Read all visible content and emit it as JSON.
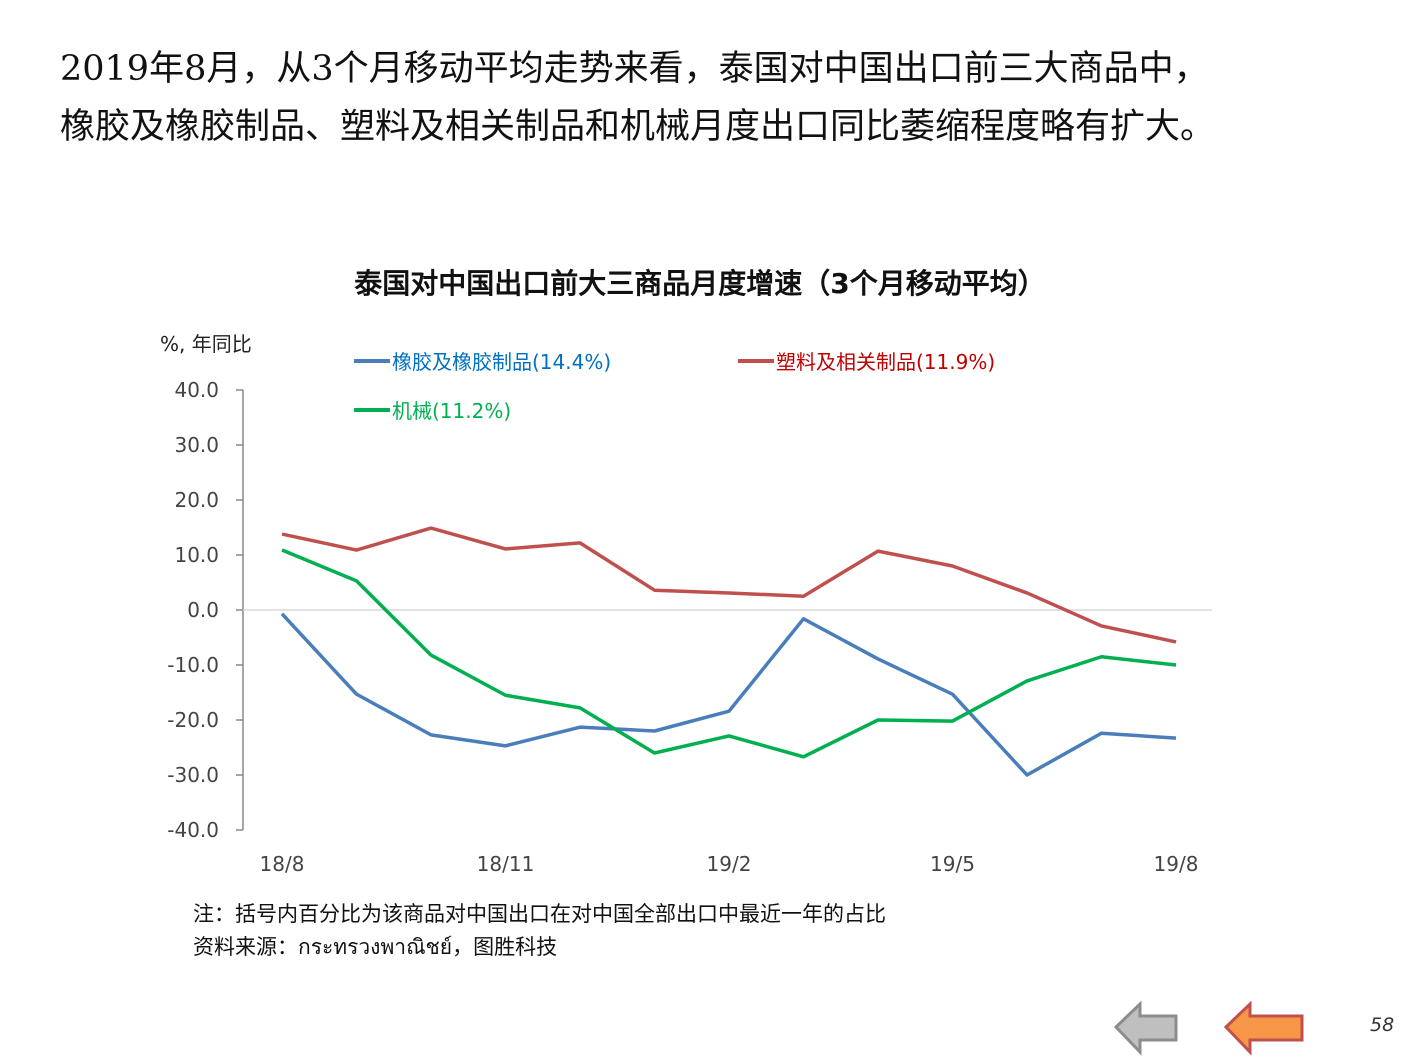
{
  "headline": {
    "line1": "2019年8月，从3个月移动平均走势来看，泰国对中国出口前三大商品中，",
    "line2": "橡胶及橡胶制品、塑料及相关制品和机械月度出口同比萎缩程度略有扩大。"
  },
  "chart_data": {
    "type": "line",
    "title": "泰国对中国出口前大三商品月度增速（3个月移动平均）",
    "ylabel": "%, 年同比",
    "xlabel": "",
    "ylim": [
      -40,
      40
    ],
    "yticks": [
      "40.0",
      "30.0",
      "20.0",
      "10.0",
      "0.0",
      "-10.0",
      "-20.0",
      "-30.0",
      "-40.0"
    ],
    "ytick_values": [
      40,
      30,
      20,
      10,
      0,
      -10,
      -20,
      -30,
      -40
    ],
    "x": [
      "18/8",
      "18/9",
      "18/10",
      "18/11",
      "18/12",
      "19/1",
      "19/2",
      "19/3",
      "19/4",
      "19/5",
      "19/6",
      "19/7",
      "19/8"
    ],
    "xtick_labels": [
      "18/8",
      "18/11",
      "19/2",
      "19/5",
      "19/8"
    ],
    "xtick_index": [
      0,
      3,
      6,
      9,
      12
    ],
    "legend_placement": "top",
    "series": [
      {
        "name": "橡胶及橡胶制品(14.4%)",
        "color": "#4a7ebb",
        "values": [
          -0.7,
          -15.3,
          -22.7,
          -24.7,
          -21.3,
          -22.0,
          -18.4,
          -1.6,
          -8.9,
          -15.3,
          -30.0,
          -22.4,
          -23.3
        ]
      },
      {
        "name": "塑料及相关制品(11.9%)",
        "color": "#c0504d",
        "values": [
          13.8,
          10.9,
          14.9,
          11.1,
          12.2,
          3.6,
          3.1,
          2.5,
          10.7,
          8.0,
          3.1,
          -2.9,
          -5.8
        ]
      },
      {
        "name": "机械(11.2%)",
        "color": "#00b050",
        "values": [
          10.9,
          5.3,
          -8.2,
          -15.5,
          -17.8,
          -26.0,
          -22.9,
          -26.7,
          -20.0,
          -20.2,
          -12.9,
          -8.5,
          -10.0
        ]
      }
    ]
  },
  "legend_text_colors": [
    "#0070c0",
    "#c00000",
    "#00b050"
  ],
  "notes": {
    "note": "注：括号内百分比为该商品对中国出口在对中国全部出口中最近一年的占比",
    "source": "资料来源：กระทรวงพาณิชย์，图胜科技"
  },
  "page_number": "58"
}
